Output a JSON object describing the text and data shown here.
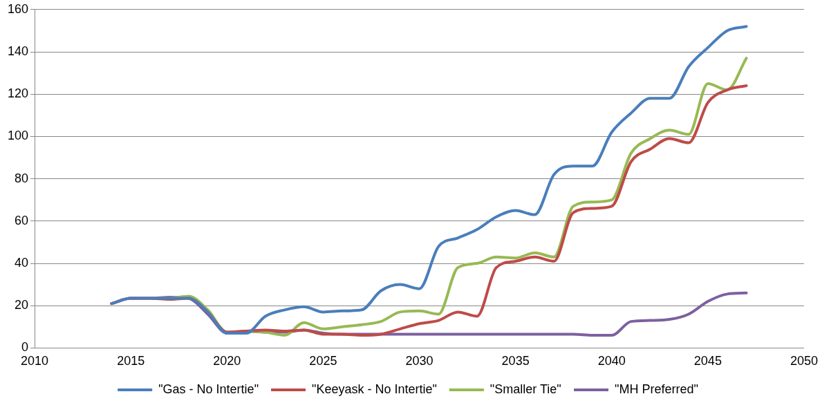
{
  "chart_data": {
    "type": "line",
    "x": [
      2014,
      2015,
      2016,
      2017,
      2018,
      2019,
      2020,
      2021,
      2022,
      2023,
      2024,
      2025,
      2026,
      2027,
      2028,
      2029,
      2030,
      2031,
      2032,
      2033,
      2034,
      2035,
      2036,
      2037,
      2038,
      2039,
      2040,
      2041,
      2042,
      2043,
      2044,
      2045,
      2046,
      2047
    ],
    "series": [
      {
        "name": "\"Gas - No Intertie\"",
        "color": "#4a7ebb",
        "values": [
          21,
          23.5,
          23.5,
          23.5,
          23.5,
          17,
          7,
          7,
          15,
          18,
          19.5,
          17,
          17.5,
          18,
          27,
          30,
          28,
          48,
          52,
          56,
          62,
          65,
          63,
          82,
          86,
          86,
          102,
          111,
          118,
          118,
          133,
          142,
          150,
          152
        ]
      },
      {
        "name": "\"Keeyask - No Intertie\"",
        "color": "#be4b48",
        "values": [
          21,
          23.5,
          23.5,
          23,
          23.5,
          17,
          7.5,
          8,
          8.5,
          8,
          8.5,
          6.5,
          6.5,
          6,
          6.5,
          9,
          11.5,
          13,
          17,
          15,
          38,
          41,
          43,
          41,
          64,
          66,
          67,
          88,
          94,
          99,
          97,
          116,
          122,
          124
        ]
      },
      {
        "name": "\"Smaller Tie\"",
        "color": "#98b954",
        "values": [
          null,
          null,
          23.5,
          23.5,
          24.5,
          18,
          7.5,
          8,
          7.5,
          6,
          12,
          9,
          10,
          11,
          12.5,
          17,
          17.5,
          16,
          38,
          40,
          43,
          42.5,
          45,
          43,
          67,
          69,
          70,
          92,
          99,
          103,
          101,
          125,
          122,
          137
        ]
      },
      {
        "name": "\"MH Preferred\"",
        "color": "#7d60a0",
        "values": [
          21,
          23.5,
          23.5,
          24,
          23.5,
          16,
          7,
          8,
          7.5,
          7.5,
          8.5,
          7,
          6.5,
          6.5,
          6.5,
          6.5,
          6.5,
          6.5,
          6.5,
          6.5,
          6.5,
          6.5,
          6.5,
          6.5,
          6.5,
          6,
          6,
          12.5,
          13,
          13.5,
          16,
          22,
          25.5,
          26
        ]
      }
    ],
    "xlim": [
      2010,
      2050
    ],
    "xticks": [
      2010,
      2015,
      2020,
      2025,
      2030,
      2035,
      2040,
      2045,
      2050
    ],
    "ylim": [
      0,
      160
    ],
    "yticks": [
      0,
      20,
      40,
      60,
      80,
      100,
      120,
      140,
      160
    ],
    "grid": "y",
    "legend": "bottom",
    "marker": "none",
    "line_style": "solid"
  }
}
